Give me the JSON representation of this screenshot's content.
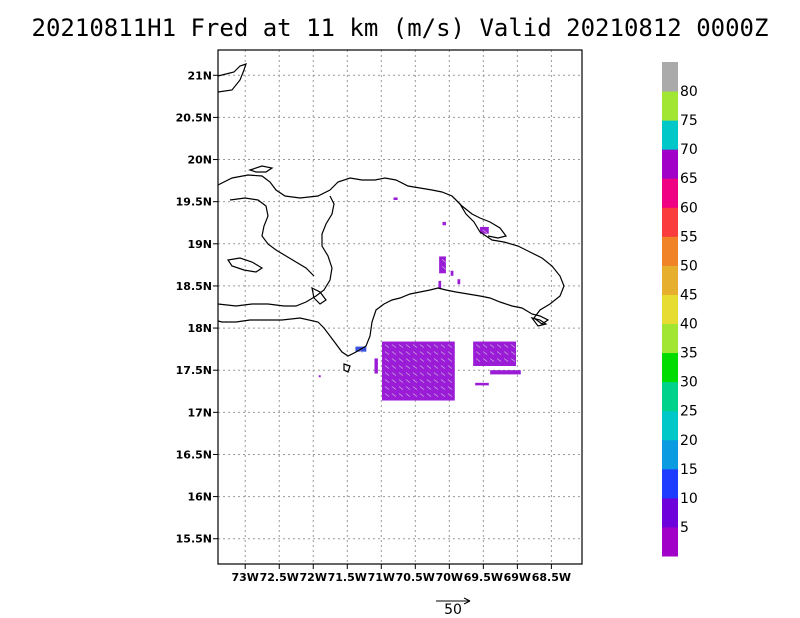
{
  "title": "20210811H1 Fred at 11 km (m/s) Valid 20210812 0000Z",
  "map": {
    "lon_range": [
      -73.4,
      -68.05
    ],
    "lat_range": [
      15.2,
      21.3
    ],
    "lat_ticks": [
      {
        "value": 21.0,
        "label": "21N"
      },
      {
        "value": 20.5,
        "label": "20.5N"
      },
      {
        "value": 20.0,
        "label": "20N"
      },
      {
        "value": 19.5,
        "label": "19.5N"
      },
      {
        "value": 19.0,
        "label": "19N"
      },
      {
        "value": 18.5,
        "label": "18.5N"
      },
      {
        "value": 18.0,
        "label": "18N"
      },
      {
        "value": 17.5,
        "label": "17.5N"
      },
      {
        "value": 17.0,
        "label": "17N"
      },
      {
        "value": 16.5,
        "label": "16.5N"
      },
      {
        "value": 16.0,
        "label": "16N"
      },
      {
        "value": 15.5,
        "label": "15.5N"
      }
    ],
    "lon_ticks": [
      {
        "value": -73.0,
        "label": "73W"
      },
      {
        "value": -72.5,
        "label": "72.5W"
      },
      {
        "value": -72.0,
        "label": "72W"
      },
      {
        "value": -71.5,
        "label": "71.5W"
      },
      {
        "value": -71.0,
        "label": "71W"
      },
      {
        "value": -70.5,
        "label": "70.5W"
      },
      {
        "value": -70.0,
        "label": "70W"
      },
      {
        "value": -69.5,
        "label": "69.5W"
      },
      {
        "value": -69.0,
        "label": "69W"
      },
      {
        "value": -68.5,
        "label": "68.5W"
      }
    ],
    "grid": true,
    "coast_color": "#000000",
    "wind_regions": [
      {
        "name": "south-main",
        "color": "#9b1cd6",
        "lon": [
          -70.99,
          -69.92
        ],
        "lat": [
          17.14,
          17.84
        ]
      },
      {
        "name": "south-east",
        "color": "#9b1cd6",
        "lon": [
          -69.65,
          -69.02
        ],
        "lat": [
          17.55,
          17.84
        ]
      },
      {
        "name": "east-strip",
        "color": "#9b1cd6",
        "lon": [
          -69.4,
          -68.95
        ],
        "lat": [
          17.45,
          17.5
        ]
      },
      {
        "name": "east-tail",
        "color": "#9b1cd6",
        "lon": [
          -69.62,
          -69.42
        ],
        "lat": [
          17.32,
          17.35
        ]
      },
      {
        "name": "west-tail",
        "color": "#9b1cd6",
        "lon": [
          -71.1,
          -71.05
        ],
        "lat": [
          17.46,
          17.64
        ]
      },
      {
        "name": "blue-patch",
        "color": "#3a53e0",
        "lon": [
          -71.38,
          -71.22
        ],
        "lat": [
          17.72,
          17.78
        ]
      },
      {
        "name": "north-1",
        "color": "#9b1cd6",
        "lon": [
          -70.15,
          -70.05
        ],
        "lat": [
          18.65,
          18.85
        ]
      },
      {
        "name": "north-2",
        "color": "#9b1cd6",
        "lon": [
          -69.55,
          -69.42
        ],
        "lat": [
          19.12,
          19.2
        ]
      },
      {
        "name": "north-3",
        "color": "#9b1cd6",
        "lon": [
          -70.1,
          -70.05
        ],
        "lat": [
          19.22,
          19.26
        ]
      },
      {
        "name": "north-4",
        "color": "#9b1cd6",
        "lon": [
          -70.82,
          -70.76
        ],
        "lat": [
          19.52,
          19.55
        ]
      },
      {
        "name": "north-5",
        "color": "#9b1cd6",
        "lon": [
          -70.16,
          -70.12
        ],
        "lat": [
          18.47,
          18.56
        ]
      },
      {
        "name": "north-6",
        "color": "#9b1cd6",
        "lon": [
          -69.98,
          -69.94
        ],
        "lat": [
          18.62,
          18.68
        ]
      },
      {
        "name": "north-7",
        "color": "#9b1cd6",
        "lon": [
          -69.88,
          -69.84
        ],
        "lat": [
          18.52,
          18.58
        ]
      },
      {
        "name": "south-dot",
        "color": "#9b1cd6",
        "lon": [
          -71.92,
          -71.9
        ],
        "lat": [
          17.42,
          17.44
        ]
      }
    ]
  },
  "reference_vector": {
    "label": "50"
  },
  "colorbar": {
    "labels": [
      "5",
      "10",
      "15",
      "20",
      "25",
      "30",
      "35",
      "40",
      "45",
      "50",
      "55",
      "60",
      "65",
      "70",
      "75",
      "80"
    ],
    "colors": [
      "#a000c8",
      "#6e00dc",
      "#1e3cff",
      "#0a9be1",
      "#00c8c8",
      "#00d28c",
      "#00dc00",
      "#a0e632",
      "#e6dc32",
      "#e6af2d",
      "#f08228",
      "#fa3c3c",
      "#f00082",
      "#a000c8",
      "#00c8c8",
      "#a0e632",
      "#aaaaaa"
    ]
  }
}
